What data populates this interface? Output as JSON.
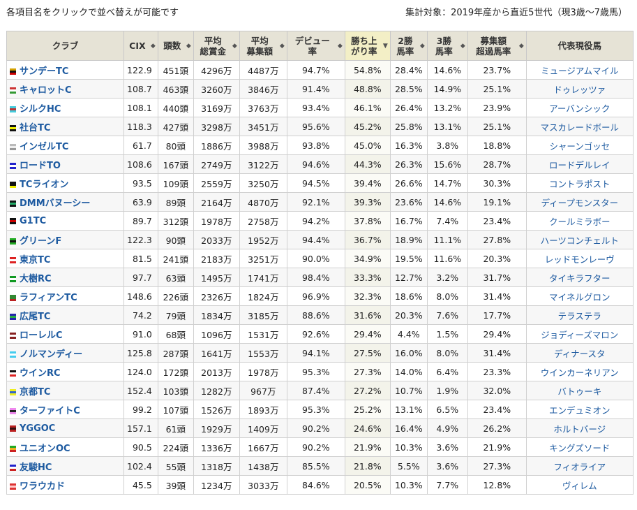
{
  "note": "各項目名をクリックで並べ替えが可能です",
  "scope": "集計対象：2019年産から直近5世代（現3歳～7歳馬）",
  "headers": [
    {
      "l1": "クラブ",
      "l2": "",
      "sort": ""
    },
    {
      "l1": "CIX",
      "l2": "",
      "sort": "updown"
    },
    {
      "l1": "頭数",
      "l2": "",
      "sort": "updown"
    },
    {
      "l1": "平均",
      "l2": "総賞金",
      "sort": "updown"
    },
    {
      "l1": "平均",
      "l2": "募集額",
      "sort": "updown"
    },
    {
      "l1": "デビュー",
      "l2": "率",
      "sort": "updown"
    },
    {
      "l1": "勝ち上",
      "l2": "がり率",
      "sort": "down"
    },
    {
      "l1": "2勝",
      "l2": "馬率",
      "sort": "updown"
    },
    {
      "l1": "3勝",
      "l2": "馬率",
      "sort": "updown"
    },
    {
      "l1": "募集額",
      "l2": "超過馬率",
      "sort": "updown"
    },
    {
      "l1": "代表現役馬",
      "l2": "",
      "sort": ""
    }
  ],
  "rows": [
    {
      "club": "サンデーTC",
      "silk": [
        "#d4a000",
        "#111",
        "#c00"
      ],
      "cix": "122.9",
      "n": "451頭",
      "prize": "4296万",
      "price": "4487万",
      "debut": "94.7%",
      "win": "54.8%",
      "w2": "28.4%",
      "w3": "14.6%",
      "over": "23.7%",
      "horse": "ミュージアムマイル"
    },
    {
      "club": "キャロットC",
      "silk": [
        "#c33",
        "#fff",
        "#393"
      ],
      "cix": "108.7",
      "n": "463頭",
      "prize": "3260万",
      "price": "3846万",
      "debut": "91.4%",
      "win": "48.8%",
      "w2": "28.5%",
      "w3": "14.9%",
      "over": "25.1%",
      "horse": "ドゥレッツァ"
    },
    {
      "club": "シルクHC",
      "silk": [
        "#4cd",
        "#b33",
        "#4cd"
      ],
      "cix": "108.1",
      "n": "440頭",
      "prize": "3169万",
      "price": "3763万",
      "debut": "93.4%",
      "win": "46.1%",
      "w2": "26.4%",
      "w3": "13.2%",
      "over": "23.9%",
      "horse": "アーバンシック"
    },
    {
      "club": "社台TC",
      "silk": [
        "#111",
        "#ee0",
        "#111"
      ],
      "cix": "118.3",
      "n": "427頭",
      "prize": "3298万",
      "price": "3451万",
      "debut": "95.6%",
      "win": "45.2%",
      "w2": "25.8%",
      "w3": "13.1%",
      "over": "25.1%",
      "horse": "マスカレードボール"
    },
    {
      "club": "インゼルTC",
      "silk": [
        "#bbb",
        "#eee",
        "#999"
      ],
      "cix": "61.7",
      "n": "80頭",
      "prize": "1886万",
      "price": "3988万",
      "debut": "93.8%",
      "win": "45.0%",
      "w2": "16.3%",
      "w3": "3.8%",
      "over": "18.8%",
      "horse": "シャーンゴッセ"
    },
    {
      "club": "ロードTO",
      "silk": [
        "#22c",
        "#fff",
        "#22c"
      ],
      "cix": "108.6",
      "n": "167頭",
      "prize": "2749万",
      "price": "3122万",
      "debut": "94.6%",
      "win": "44.3%",
      "w2": "26.3%",
      "w3": "15.6%",
      "over": "28.7%",
      "horse": "ロードデルレイ"
    },
    {
      "club": "TCライオン",
      "silk": [
        "#111",
        "#111",
        "#ee0"
      ],
      "cix": "93.5",
      "n": "109頭",
      "prize": "2559万",
      "price": "3250万",
      "debut": "94.5%",
      "win": "39.4%",
      "w2": "26.6%",
      "w3": "14.7%",
      "over": "30.3%",
      "horse": "コントラポスト"
    },
    {
      "club": "DMMバヌーシー",
      "silk": [
        "#111",
        "#2a6",
        "#111"
      ],
      "cix": "63.9",
      "n": "89頭",
      "prize": "2164万",
      "price": "4870万",
      "debut": "92.1%",
      "win": "39.3%",
      "w2": "23.6%",
      "w3": "14.6%",
      "over": "19.1%",
      "horse": "ディープモンスター"
    },
    {
      "club": "G1TC",
      "silk": [
        "#111",
        "#c00",
        "#111"
      ],
      "cix": "89.7",
      "n": "312頭",
      "prize": "1978万",
      "price": "2758万",
      "debut": "94.2%",
      "win": "37.8%",
      "w2": "16.7%",
      "w3": "7.4%",
      "over": "23.4%",
      "horse": "クールミラボー"
    },
    {
      "club": "グリーンF",
      "silk": [
        "#2a2",
        "#111",
        "#2a2"
      ],
      "cix": "122.3",
      "n": "90頭",
      "prize": "2033万",
      "price": "1952万",
      "debut": "94.4%",
      "win": "36.7%",
      "w2": "18.9%",
      "w3": "11.1%",
      "over": "27.8%",
      "horse": "ハーツコンチェルト"
    },
    {
      "club": "東京TC",
      "silk": [
        "#d22",
        "#fff",
        "#d22"
      ],
      "cix": "81.5",
      "n": "241頭",
      "prize": "2183万",
      "price": "3251万",
      "debut": "90.0%",
      "win": "34.9%",
      "w2": "19.5%",
      "w3": "11.6%",
      "over": "20.3%",
      "horse": "レッドモンレーヴ"
    },
    {
      "club": "大樹RC",
      "silk": [
        "#192",
        "#fff",
        "#192"
      ],
      "cix": "97.7",
      "n": "63頭",
      "prize": "1495万",
      "price": "1741万",
      "debut": "98.4%",
      "win": "33.3%",
      "w2": "12.7%",
      "w3": "3.2%",
      "over": "31.7%",
      "horse": "タイキラフター"
    },
    {
      "club": "ラフィアンTC",
      "silk": [
        "#383",
        "#383",
        "#b22"
      ],
      "cix": "148.6",
      "n": "226頭",
      "prize": "2326万",
      "price": "1824万",
      "debut": "96.9%",
      "win": "32.3%",
      "w2": "18.6%",
      "w3": "8.0%",
      "over": "31.4%",
      "horse": "マイネルグロン"
    },
    {
      "club": "広尾TC",
      "silk": [
        "#22a",
        "#2a4",
        "#22a"
      ],
      "cix": "74.2",
      "n": "79頭",
      "prize": "1834万",
      "price": "3185万",
      "debut": "88.6%",
      "win": "31.6%",
      "w2": "20.3%",
      "w3": "7.6%",
      "over": "17.7%",
      "horse": "テラステラ"
    },
    {
      "club": "ローレルC",
      "silk": [
        "#822",
        "#fff",
        "#822"
      ],
      "cix": "91.0",
      "n": "68頭",
      "prize": "1096万",
      "price": "1531万",
      "debut": "92.6%",
      "win": "29.4%",
      "w2": "4.4%",
      "w3": "1.5%",
      "over": "29.4%",
      "horse": "ジョディーズマロン"
    },
    {
      "club": "ノルマンディー",
      "silk": [
        "#4ce",
        "#fff",
        "#4ce"
      ],
      "cix": "125.8",
      "n": "287頭",
      "prize": "1641万",
      "price": "1553万",
      "debut": "94.1%",
      "win": "27.5%",
      "w2": "16.0%",
      "w3": "8.0%",
      "over": "31.4%",
      "horse": "ディナースタ"
    },
    {
      "club": "ウインRC",
      "silk": [
        "#111",
        "#fff",
        "#d22"
      ],
      "cix": "124.0",
      "n": "172頭",
      "prize": "2013万",
      "price": "1978万",
      "debut": "95.3%",
      "win": "27.3%",
      "w2": "14.0%",
      "w3": "6.4%",
      "over": "23.3%",
      "horse": "ウインカーネリアン"
    },
    {
      "club": "京都TC",
      "silk": [
        "#ee2",
        "#36c",
        "#ee2"
      ],
      "cix": "152.4",
      "n": "103頭",
      "prize": "1282万",
      "price": "967万",
      "debut": "87.4%",
      "win": "27.2%",
      "w2": "10.7%",
      "w3": "1.9%",
      "over": "32.0%",
      "horse": "バトゥーキ"
    },
    {
      "club": "ターファイトC",
      "silk": [
        "#e8e",
        "#222",
        "#e8e"
      ],
      "cix": "99.2",
      "n": "107頭",
      "prize": "1526万",
      "price": "1893万",
      "debut": "95.3%",
      "win": "25.2%",
      "w2": "13.1%",
      "w3": "6.5%",
      "over": "23.4%",
      "horse": "エンデュミオン"
    },
    {
      "club": "YGGOC",
      "silk": [
        "#b22",
        "#311",
        "#b22"
      ],
      "cix": "157.1",
      "n": "61頭",
      "prize": "1929万",
      "price": "1409万",
      "debut": "90.2%",
      "win": "24.6%",
      "w2": "16.4%",
      "w3": "4.9%",
      "over": "26.2%",
      "horse": "ホルトバージ"
    },
    {
      "club": "ユニオンOC",
      "silk": [
        "#2a2",
        "#ea2",
        "#c22"
      ],
      "cix": "90.5",
      "n": "224頭",
      "prize": "1336万",
      "price": "1667万",
      "debut": "90.2%",
      "win": "21.9%",
      "w2": "10.3%",
      "w3": "3.6%",
      "over": "21.9%",
      "horse": "キングズソード"
    },
    {
      "club": "友駿HC",
      "silk": [
        "#22c",
        "#fff",
        "#c22"
      ],
      "cix": "102.4",
      "n": "55頭",
      "prize": "1318万",
      "price": "1438万",
      "debut": "85.5%",
      "win": "21.8%",
      "w2": "5.5%",
      "w3": "3.6%",
      "over": "27.3%",
      "horse": "フィオライア"
    },
    {
      "club": "ワラウカド",
      "silk": [
        "#d33",
        "#fcc",
        "#d33"
      ],
      "cix": "45.5",
      "n": "39頭",
      "prize": "1234万",
      "price": "3033万",
      "debut": "84.6%",
      "win": "20.5%",
      "w2": "10.3%",
      "w3": "7.7%",
      "over": "12.8%",
      "horse": "ヴィレム"
    }
  ]
}
